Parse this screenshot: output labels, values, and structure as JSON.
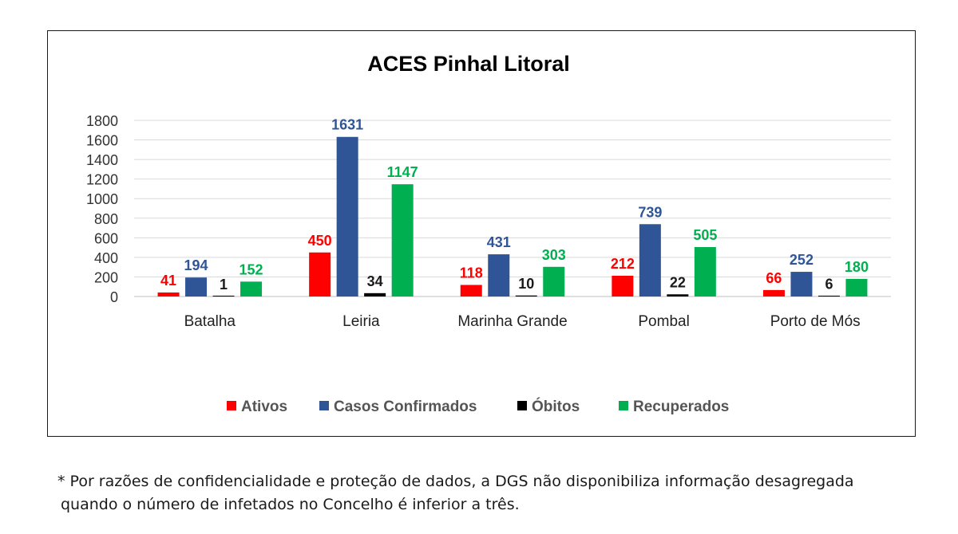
{
  "chart_data": {
    "type": "bar",
    "title": "ACES Pinhal Litoral",
    "categories": [
      "Batalha",
      "Leiria",
      "Marinha Grande",
      "Pombal",
      "Porto de Mós"
    ],
    "series": [
      {
        "name": "Ativos",
        "color": "#ff0000",
        "values": [
          41,
          450,
          118,
          212,
          66
        ]
      },
      {
        "name": "Casos Confirmados",
        "color": "#2f5597",
        "values": [
          194,
          1631,
          431,
          739,
          252
        ]
      },
      {
        "name": "Óbitos",
        "color": "#000000",
        "values": [
          1,
          34,
          10,
          22,
          6
        ]
      },
      {
        "name": "Recuperados",
        "color": "#00b050",
        "values": [
          152,
          1147,
          303,
          505,
          180
        ]
      }
    ],
    "ylim": [
      0,
      1800
    ],
    "yticks": [
      0,
      200,
      400,
      600,
      800,
      1000,
      1200,
      1400,
      1600,
      1800
    ],
    "grid": true,
    "legend_position": "bottom",
    "data_labels": true
  },
  "footnote": {
    "line1": "* Por razões de confidencialidade e proteção de dados, a DGS não disponibiliza informação desagregada",
    "line2": "quando o número de infetados no Concelho é inferior a três."
  }
}
